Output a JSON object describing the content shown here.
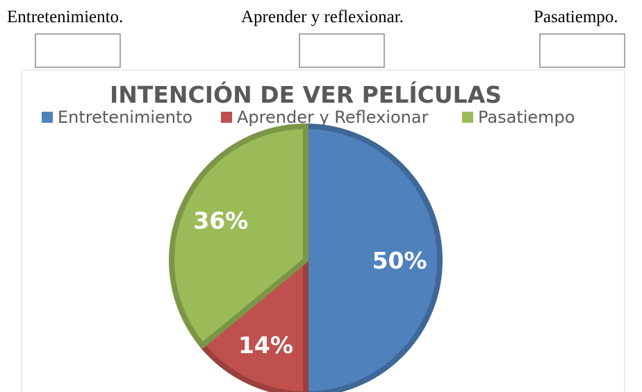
{
  "header_labels": [
    "Entretenimiento.",
    "Aprender y reflexionar.",
    "Pasatiempo."
  ],
  "chart_data": {
    "type": "pie",
    "title": "INTENCIÓN DE VER PELÍCULAS",
    "categories": [
      "Entretenimiento",
      "Aprender y Reflexionar",
      "Pasatiempo"
    ],
    "values": [
      50,
      14,
      36
    ],
    "value_labels": [
      "50%",
      "14%",
      "36%"
    ],
    "colors": [
      "#4f81bd",
      "#c0504d",
      "#9bbb59"
    ]
  }
}
